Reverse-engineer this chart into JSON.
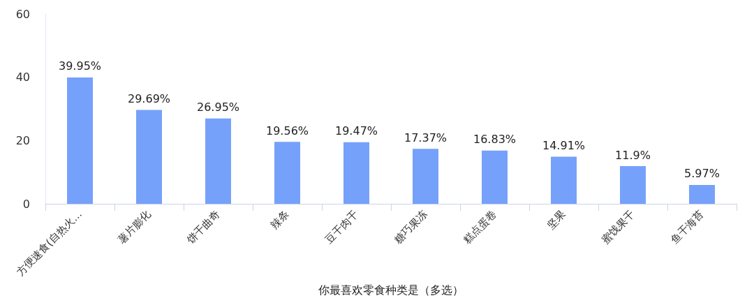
{
  "chart_data": {
    "type": "bar",
    "xlabel": "你最喜欢零食种类是（多选）",
    "categories": [
      "方便速食(自热火...",
      "薯片膨化",
      "饼干曲奇",
      "辣条",
      "豆干肉干",
      "糖巧果冻",
      "糕点蛋卷",
      "坚果",
      "蜜饯果干",
      "鱼干海苔"
    ],
    "values": [
      39.95,
      29.69,
      26.95,
      19.56,
      19.47,
      17.37,
      16.83,
      14.91,
      11.9,
      5.97
    ],
    "value_labels": [
      "39.95%",
      "29.69%",
      "26.95%",
      "19.56%",
      "19.47%",
      "17.37%",
      "16.83%",
      "14.91%",
      "11.9%",
      "5.97%"
    ],
    "color": "#76a1fb",
    "ylim": [
      0,
      60
    ],
    "yticks": [
      0,
      20,
      40,
      60
    ],
    "grid": false
  }
}
